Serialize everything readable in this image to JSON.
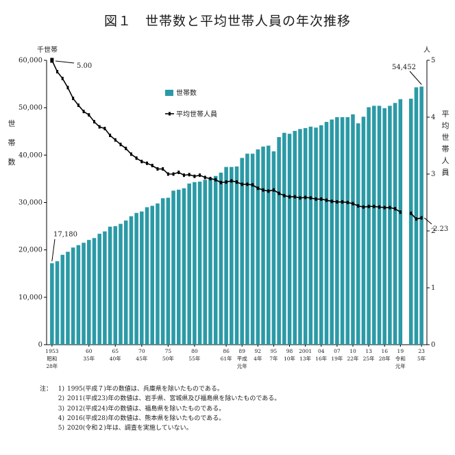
{
  "title": "図１　世帯数と平均世帯人員の年次推移",
  "chart_data": {
    "type": "bar+line",
    "left_axis": {
      "unit": "千世帯",
      "label": "世帯数",
      "ticks": [
        "0",
        "10,000",
        "20,000",
        "30,000",
        "40,000",
        "50,000",
        "60,000"
      ],
      "range": [
        0,
        60000
      ]
    },
    "right_axis": {
      "unit": "人",
      "label": "平均世帯人員",
      "ticks": [
        "0",
        "1",
        "2",
        "3",
        "4",
        "5"
      ],
      "range": [
        0,
        5
      ]
    },
    "legend": {
      "households": "世帯数",
      "avg": "平均世帯人員",
      "position": "top-right"
    },
    "x_tick_labels": [
      {
        "year": 1953,
        "lines": [
          "1953",
          "昭和",
          "28年"
        ]
      },
      {
        "year": 1960,
        "lines": [
          "60",
          "35年"
        ]
      },
      {
        "year": 1965,
        "lines": [
          "65",
          "40年"
        ]
      },
      {
        "year": 1970,
        "lines": [
          "70",
          "45年"
        ]
      },
      {
        "year": 1975,
        "lines": [
          "75",
          "50年"
        ]
      },
      {
        "year": 1980,
        "lines": [
          "80",
          "55年"
        ]
      },
      {
        "year": 1986,
        "lines": [
          "86",
          "61年"
        ]
      },
      {
        "year": 1989,
        "lines": [
          "89",
          "平成",
          "元年"
        ]
      },
      {
        "year": 1992,
        "lines": [
          "92",
          "4年"
        ]
      },
      {
        "year": 1995,
        "lines": [
          "95",
          "7年"
        ]
      },
      {
        "year": 1998,
        "lines": [
          "98",
          "10年"
        ]
      },
      {
        "year": 2001,
        "lines": [
          "2001",
          "13年"
        ]
      },
      {
        "year": 2004,
        "lines": [
          "04",
          "16年"
        ]
      },
      {
        "year": 2007,
        "lines": [
          "07",
          "19年"
        ]
      },
      {
        "year": 2010,
        "lines": [
          "10",
          "22年"
        ]
      },
      {
        "year": 2013,
        "lines": [
          "13",
          "25年"
        ]
      },
      {
        "year": 2016,
        "lines": [
          "16",
          "28年"
        ]
      },
      {
        "year": 2019,
        "lines": [
          "19",
          "令和",
          "元年"
        ]
      },
      {
        "year": 2023,
        "lines": [
          "23",
          "5年"
        ]
      }
    ],
    "series": [
      {
        "name": "世帯数",
        "type": "bar",
        "axis": "left",
        "x": [
          1953,
          1954,
          1955,
          1956,
          1957,
          1958,
          1959,
          1960,
          1961,
          1962,
          1963,
          1964,
          1965,
          1966,
          1967,
          1968,
          1969,
          1970,
          1971,
          1972,
          1973,
          1974,
          1975,
          1976,
          1977,
          1978,
          1979,
          1980,
          1981,
          1982,
          1983,
          1984,
          1985,
          1986,
          1987,
          1988,
          1989,
          1990,
          1991,
          1992,
          1993,
          1994,
          1995,
          1996,
          1997,
          1998,
          1999,
          2000,
          2001,
          2002,
          2003,
          2004,
          2005,
          2006,
          2007,
          2008,
          2009,
          2010,
          2011,
          2012,
          2013,
          2014,
          2015,
          2016,
          2017,
          2018,
          2019,
          2021,
          2022,
          2023
        ],
        "values": [
          17180,
          17600,
          18960,
          19600,
          20500,
          21000,
          21500,
          22100,
          22500,
          23400,
          23900,
          24900,
          25000,
          25500,
          26200,
          27100,
          27800,
          28100,
          29000,
          29300,
          29800,
          30900,
          31000,
          32500,
          32700,
          33000,
          34000,
          34300,
          34400,
          34800,
          35200,
          35600,
          36300,
          37500,
          37500,
          37600,
          39400,
          40300,
          40300,
          41200,
          41800,
          42000,
          40800,
          43800,
          44700,
          44500,
          45100,
          45500,
          45700,
          46000,
          45800,
          46300,
          47000,
          47500,
          48000,
          48000,
          48000,
          48600,
          46700,
          48100,
          50100,
          50400,
          50400,
          49900,
          50400,
          51000,
          51800,
          51900,
          54300,
          54452
        ]
      },
      {
        "name": "平均世帯人員",
        "type": "line",
        "axis": "right",
        "x": [
          1953,
          1954,
          1955,
          1956,
          1957,
          1958,
          1959,
          1960,
          1961,
          1962,
          1963,
          1964,
          1965,
          1966,
          1967,
          1968,
          1969,
          1970,
          1971,
          1972,
          1973,
          1974,
          1975,
          1976,
          1977,
          1978,
          1979,
          1980,
          1981,
          1982,
          1983,
          1984,
          1985,
          1986,
          1987,
          1988,
          1989,
          1990,
          1991,
          1992,
          1993,
          1994,
          1995,
          1996,
          1997,
          1998,
          1999,
          2000,
          2001,
          2002,
          2003,
          2004,
          2005,
          2006,
          2007,
          2008,
          2009,
          2010,
          2011,
          2012,
          2013,
          2014,
          2015,
          2016,
          2017,
          2018,
          2019,
          2021,
          2022,
          2023
        ],
        "values": [
          5.0,
          4.8,
          4.68,
          4.52,
          4.33,
          4.21,
          4.1,
          4.04,
          3.92,
          3.83,
          3.8,
          3.68,
          3.6,
          3.52,
          3.45,
          3.35,
          3.28,
          3.22,
          3.19,
          3.15,
          3.09,
          3.09,
          3.0,
          3.0,
          3.03,
          2.98,
          2.99,
          2.96,
          2.98,
          2.94,
          2.92,
          2.9,
          2.85,
          2.86,
          2.88,
          2.86,
          2.82,
          2.82,
          2.81,
          2.75,
          2.72,
          2.7,
          2.72,
          2.66,
          2.62,
          2.6,
          2.6,
          2.58,
          2.59,
          2.58,
          2.56,
          2.56,
          2.54,
          2.52,
          2.51,
          2.51,
          2.5,
          2.48,
          2.44,
          2.42,
          2.43,
          2.43,
          2.42,
          2.41,
          2.41,
          2.39,
          2.33,
          2.31,
          2.21,
          2.23
        ]
      }
    ],
    "annotations": [
      {
        "text": "17,180",
        "year": 1953
      },
      {
        "text": "5.00",
        "year": 1953
      },
      {
        "text": "54,452",
        "year": 2023
      },
      {
        "text": "2.23",
        "year": 2023
      }
    ]
  },
  "notes_prefix": "注：",
  "notes": [
    {
      "num": "1)",
      "text": "1995(平成７)年の数値は、兵庫県を除いたものである。"
    },
    {
      "num": "2)",
      "text": "2011(平成23)年の数値は、岩手県、宮城県及び福島県を除いたものである。"
    },
    {
      "num": "3)",
      "text": "2012(平成24)年の数値は、福島県を除いたものである。"
    },
    {
      "num": "4)",
      "text": "2016(平成28)年の数値は、熊本県を除いたものである。"
    },
    {
      "num": "5)",
      "text": "2020(令和２)年は、調査を実施していない。"
    }
  ],
  "colors": {
    "bar": "#2b9aa6",
    "line": "#000000"
  }
}
